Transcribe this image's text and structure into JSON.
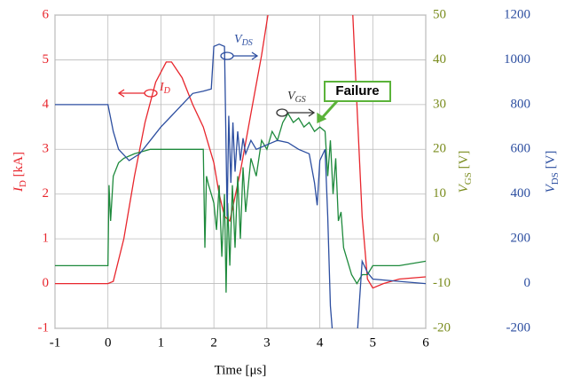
{
  "chart_data": {
    "type": "line",
    "xlabel": "Time [μs]",
    "xlim": [
      -1,
      6
    ],
    "xticks": [
      -1,
      0,
      1,
      2,
      3,
      4,
      5,
      6
    ],
    "ylim": [
      -1,
      6
    ],
    "yticks": [
      -1,
      0,
      1,
      2,
      3,
      4,
      5,
      6
    ],
    "ylabel": {
      "main": "I",
      "sub": "D",
      "unit": " [kA]"
    },
    "y2lim": [
      -20,
      50
    ],
    "y2ticks": [
      -20,
      -10,
      0,
      10,
      20,
      30,
      40,
      50
    ],
    "y2label": {
      "main": "V",
      "sub": "GS",
      "unit": " [V]"
    },
    "y3lim": [
      -200,
      1200
    ],
    "y3ticks": [
      -200,
      0,
      200,
      400,
      600,
      800,
      1000,
      1200
    ],
    "y3label": {
      "main": "V",
      "sub": "DS",
      "unit": " [V]"
    },
    "grid": true,
    "series": [
      {
        "name": "ID",
        "color": "#e8262d",
        "axis": "y",
        "x": [
          -1,
          0,
          0.1,
          0.3,
          0.5,
          0.7,
          0.9,
          1.1,
          1.2,
          1.4,
          1.6,
          1.8,
          2.0,
          2.1,
          2.2,
          2.3,
          2.5,
          2.7,
          2.9,
          3.1,
          4.6,
          4.7,
          4.8,
          4.9,
          5.0,
          5.2,
          5.5,
          6
        ],
        "values": [
          0,
          0,
          0.05,
          1.0,
          2.4,
          3.6,
          4.5,
          4.95,
          4.95,
          4.6,
          4.0,
          3.5,
          2.7,
          2.0,
          1.5,
          1.4,
          2.5,
          3.8,
          5.1,
          6.6,
          6.6,
          4.0,
          1.5,
          0.1,
          -0.1,
          0.0,
          0.1,
          0.15
        ]
      },
      {
        "name": "VGS",
        "color": "#1e8a3c",
        "axis": "y2",
        "x": [
          -1,
          0,
          0.02,
          0.05,
          0.1,
          0.2,
          0.3,
          0.5,
          0.8,
          1.2,
          1.6,
          1.8,
          1.83,
          1.86,
          1.9,
          1.95,
          2.0,
          2.05,
          2.1,
          2.15,
          2.2,
          2.23,
          2.26,
          2.3,
          2.35,
          2.4,
          2.45,
          2.5,
          2.55,
          2.6,
          2.7,
          2.8,
          2.9,
          3.0,
          3.1,
          3.2,
          3.3,
          3.4,
          3.5,
          3.6,
          3.7,
          3.8,
          3.9,
          4.0,
          4.1,
          4.15,
          4.2,
          4.25,
          4.3,
          4.35,
          4.4,
          4.45,
          4.5,
          4.6,
          4.7,
          4.8,
          4.9,
          5.0,
          5.5,
          6
        ],
        "values": [
          -6,
          -6,
          12,
          4,
          14,
          17,
          18,
          19,
          20,
          20,
          20,
          20,
          -2,
          14,
          12,
          10,
          8,
          2,
          12,
          -4,
          10,
          -12,
          8,
          -6,
          12,
          -2,
          14,
          0,
          16,
          6,
          18,
          14,
          22,
          20,
          24,
          22,
          26,
          28,
          26,
          27,
          25,
          26,
          24,
          25,
          24,
          14,
          22,
          10,
          18,
          4,
          6,
          -2,
          -4,
          -8,
          -10,
          -8,
          -8,
          -6,
          -6,
          -5
        ]
      },
      {
        "name": "VDS",
        "color": "#2c4ea0",
        "axis": "y3",
        "x": [
          -1,
          0,
          0.1,
          0.2,
          0.4,
          0.6,
          0.8,
          1.0,
          1.2,
          1.4,
          1.6,
          1.8,
          1.95,
          2.0,
          2.1,
          2.2,
          2.25,
          2.28,
          2.32,
          2.36,
          2.4,
          2.45,
          2.5,
          2.55,
          2.6,
          2.7,
          2.8,
          3.0,
          3.2,
          3.4,
          3.6,
          3.8,
          3.9,
          3.95,
          4.0,
          4.1,
          4.15,
          4.2,
          4.25,
          4.7,
          4.8,
          4.9,
          5.0,
          5.5,
          6
        ],
        "values": [
          800,
          800,
          680,
          600,
          550,
          580,
          640,
          700,
          750,
          800,
          850,
          860,
          870,
          1060,
          1070,
          1060,
          300,
          750,
          450,
          720,
          500,
          680,
          550,
          650,
          580,
          640,
          600,
          620,
          640,
          630,
          600,
          580,
          450,
          350,
          550,
          600,
          300,
          -100,
          -250,
          -250,
          100,
          50,
          20,
          10,
          0
        ]
      }
    ],
    "annotations": [
      {
        "text": "I",
        "sub": "D"
      },
      {
        "text": "V",
        "sub": "DS"
      },
      {
        "text": "V",
        "sub": "GS"
      },
      {
        "text": "Failure"
      }
    ],
    "tick_colors": {
      "y": "#e8262d",
      "y2": "#7a8c1e",
      "y3": "#2c4ea0"
    }
  }
}
